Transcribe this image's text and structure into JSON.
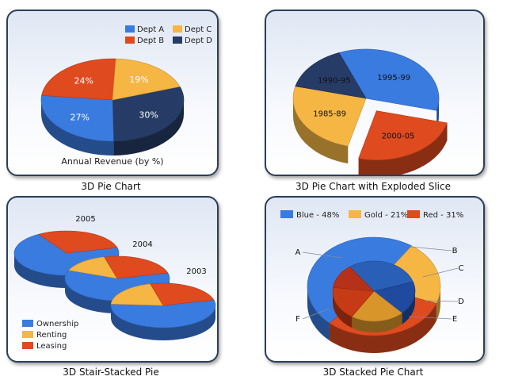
{
  "chart_data": [
    {
      "type": "pie",
      "caption": "3D Pie Chart",
      "title": "Annual Revenue (by %)",
      "legend": [
        {
          "name": "Dept A",
          "color": "#3a7be0"
        },
        {
          "name": "Dept C",
          "color": "#f5b643"
        },
        {
          "name": "Dept B",
          "color": "#df4a1f"
        },
        {
          "name": "Dept D",
          "color": "#263c66"
        }
      ],
      "legend_position": "top-right",
      "slices": [
        {
          "name": "Dept D",
          "value": 30,
          "label": "30%",
          "color": "#263c66"
        },
        {
          "name": "Dept A",
          "value": 27,
          "label": "27%",
          "color": "#3a7be0"
        },
        {
          "name": "Dept B",
          "value": 24,
          "label": "24%",
          "color": "#df4a1f"
        },
        {
          "name": "Dept C",
          "value": 19,
          "label": "19%",
          "color": "#f5b643"
        }
      ]
    },
    {
      "type": "pie",
      "caption": "3D Pie Chart with Exploded Slice",
      "slices": [
        {
          "label": "1995-99",
          "value": 35,
          "color": "#3a7be0",
          "exploded": false
        },
        {
          "label": "2000-05",
          "value": 25,
          "color": "#df4a1f",
          "exploded": true
        },
        {
          "label": "1985-89",
          "value": 25,
          "color": "#f5b643",
          "exploded": false
        },
        {
          "label": "1990-95",
          "value": 15,
          "color": "#263c66",
          "exploded": false
        }
      ]
    },
    {
      "type": "pie",
      "caption": "3D Stair-Stacked Pie",
      "legend": [
        {
          "name": "Ownership",
          "color": "#3a7be0"
        },
        {
          "name": "Renting",
          "color": "#f5b643"
        },
        {
          "name": "Leasing",
          "color": "#df4a1f"
        }
      ],
      "legend_position": "bottom-left",
      "pies": [
        {
          "label": "2005",
          "values": [
            70,
            0,
            30
          ]
        },
        {
          "label": "2004",
          "values": [
            60,
            15,
            25
          ]
        },
        {
          "label": "2003",
          "values": [
            55,
            20,
            25
          ]
        }
      ]
    },
    {
      "type": "pie",
      "caption": "3D Stacked Pie Chart",
      "legend": [
        {
          "name": "Blue - 48%",
          "color": "#3a7be0"
        },
        {
          "name": "Gold - 21%",
          "color": "#f5b643"
        },
        {
          "name": "Red - 31%",
          "color": "#df4a1f"
        }
      ],
      "legend_position": "top",
      "outer_slices": [
        {
          "value": 48,
          "color": "#3a7be0"
        },
        {
          "value": 21,
          "color": "#f5b643"
        },
        {
          "value": 31,
          "color": "#df4a1f"
        }
      ],
      "inner_slices": [
        {
          "value": 30,
          "color": "#2a5fb8"
        },
        {
          "value": 18,
          "color": "#1f4aa0"
        },
        {
          "value": 21,
          "color": "#d8952a"
        },
        {
          "value": 18,
          "color": "#c63a15"
        },
        {
          "value": 13,
          "color": "#b5311a"
        }
      ],
      "point_labels": [
        "A",
        "B",
        "C",
        "D",
        "E",
        "F"
      ]
    }
  ]
}
